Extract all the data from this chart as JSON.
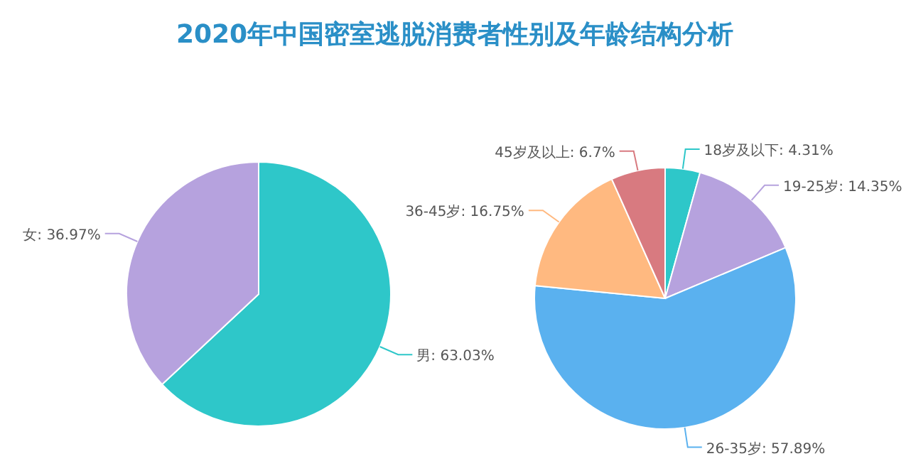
{
  "chart_data": [
    {
      "type": "pie",
      "title": "2020年中国密室逃脱消费者性别及年龄结构分析",
      "categories": [
        "男",
        "女"
      ],
      "values": [
        63.03,
        36.97
      ],
      "value_labels": [
        "63.03%",
        "36.97%"
      ],
      "colors": [
        "#2ec7c9",
        "#b6a2de"
      ]
    },
    {
      "type": "pie",
      "categories": [
        "18岁及以下",
        "19-25岁",
        "26-35岁",
        "36-45岁",
        "45岁及以上"
      ],
      "values": [
        4.31,
        14.35,
        57.89,
        16.75,
        6.7
      ],
      "value_labels": [
        "4.31%",
        "14.35%",
        "57.89%",
        "16.75%",
        "6.7%"
      ],
      "colors": [
        "#2ec7c9",
        "#b6a2de",
        "#5ab1ef",
        "#ffb980",
        "#d87a80"
      ]
    }
  ]
}
